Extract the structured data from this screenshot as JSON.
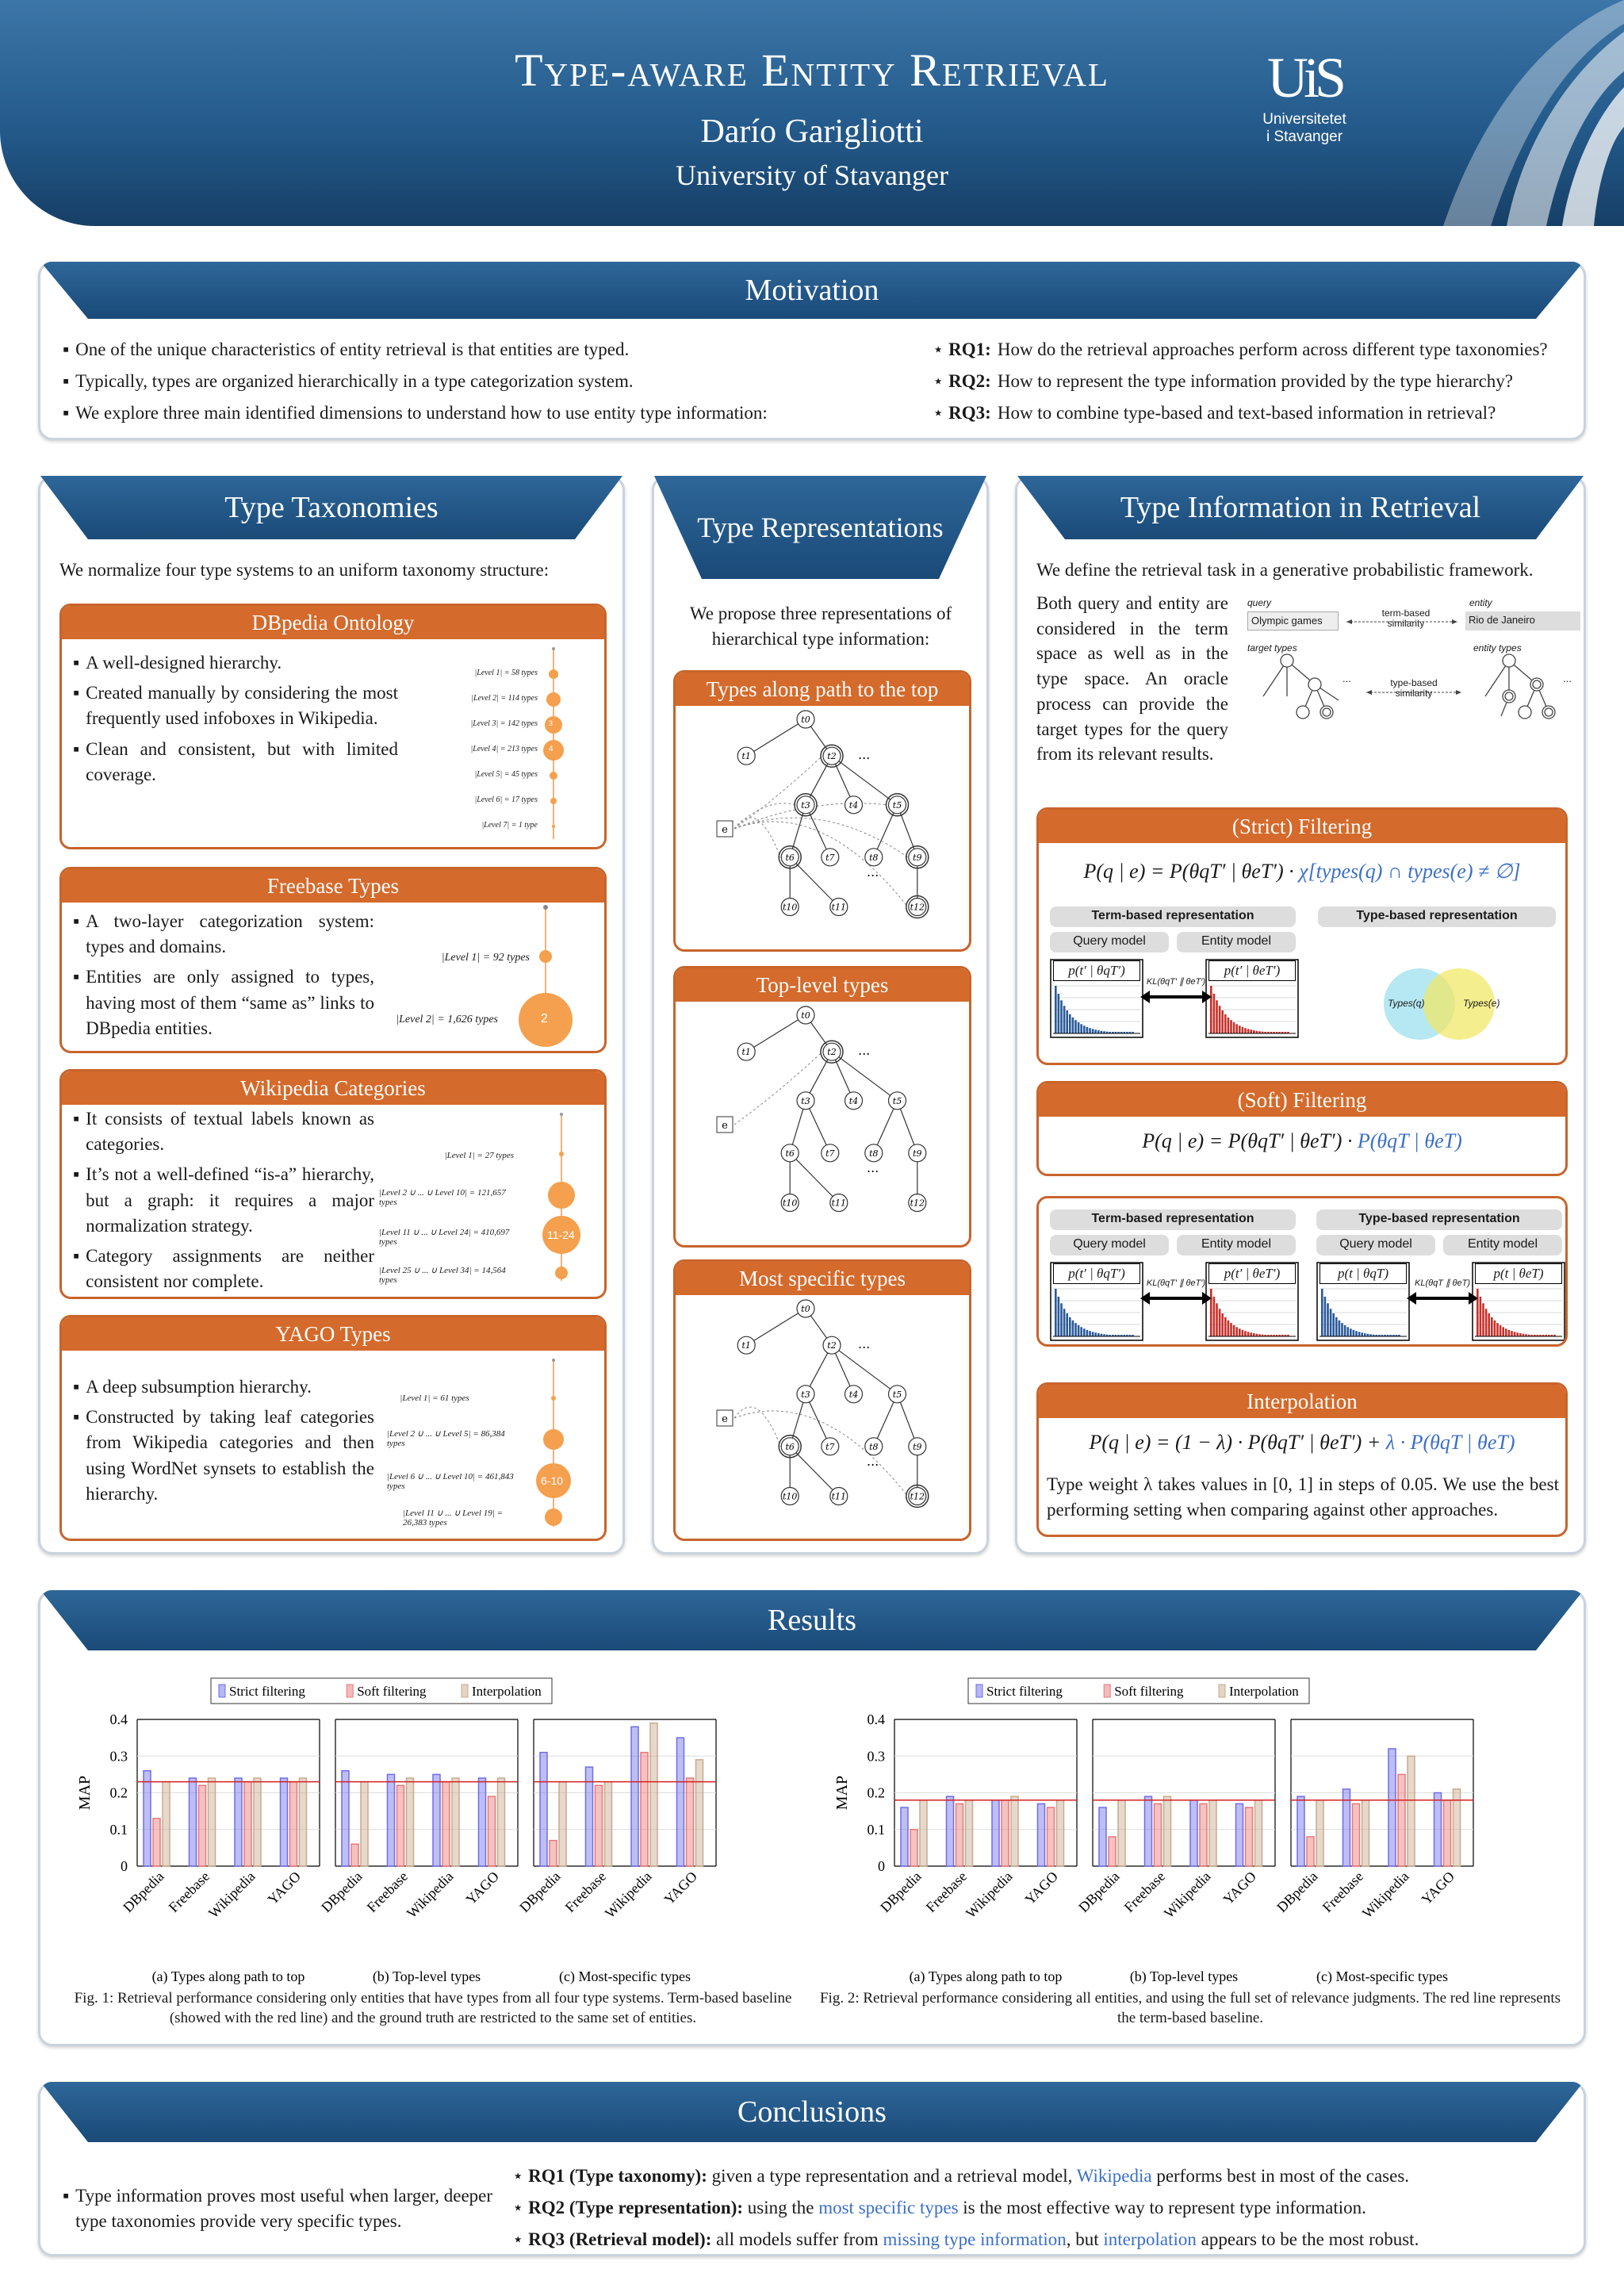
{
  "header": {
    "title": "Type-aware Entity Retrieval",
    "author": "Darío Garigliotti",
    "affiliation": "University of Stavanger",
    "logo_mark": "UiS",
    "logo_name_1": "Universitetet",
    "logo_name_2": "i Stavanger"
  },
  "motivation": {
    "title": "Motivation",
    "bullets": [
      "One of the unique characteristics of entity retrieval is that entities are typed.",
      "Typically, types are organized hierarchically in a type categorization system.",
      "We explore three main identified dimensions to understand how to use entity type information:"
    ],
    "rq": [
      {
        "label": "RQ1:",
        "text": "How do the retrieval approaches perform across different type taxonomies?"
      },
      {
        "label": "RQ2:",
        "text": "How to represent the type information provided by the type hierarchy?"
      },
      {
        "label": "RQ3:",
        "text": "How to combine type-based and text-based information in retrieval?"
      }
    ]
  },
  "taxonomies": {
    "title": "Type Taxonomies",
    "intro": "We normalize four type systems to an uniform taxonomy structure:",
    "dbpedia": {
      "title": "DBpedia Ontology",
      "bullets": [
        "A well-designed hierarchy.",
        "Created manually by considering the most frequently used infoboxes in Wikipedia.",
        "Clean and consistent, but with limited coverage."
      ],
      "levels": [
        "|Level 1| = 58 types",
        "|Level 2| = 114 types",
        "|Level 3| = 142 types",
        "|Level 4| = 213 types",
        "|Level 5| = 45 types",
        "|Level 6| = 17 types",
        "|Level 7| = 1 type"
      ],
      "circle_labels": [
        "3",
        "4"
      ]
    },
    "freebase": {
      "title": "Freebase Types",
      "bullets": [
        "A two-layer categorization system: types and domains.",
        "Entities are only assigned to types, having most of them “same as” links to DBpedia entities."
      ],
      "levels": [
        "|Level 1| = 92 types",
        "|Level 2| = 1,626 types"
      ],
      "circle_label": "2"
    },
    "wikipedia": {
      "title": "Wikipedia Categories",
      "bullets": [
        "It consists of textual labels known as categories.",
        "It’s not a well-defined “is-a” hierarchy, but a graph: it requires a major normalization strategy.",
        "Category assignments are neither consistent nor complete."
      ],
      "levels": [
        "|Level 1| = 27 types",
        "|Level 2 ∪ ... ∪ Level 10| = 121,657 types",
        "|Level 11 ∪ ... ∪ Level 24| = 410,697 types",
        "|Level 25 ∪ ... ∪ Level 34| = 14,564 types"
      ],
      "circle_label": "11-24"
    },
    "yago": {
      "title": "YAGO Types",
      "bullets": [
        "A deep subsumption hierarchy.",
        "Constructed by taking leaf categories from Wikipedia categories and then using WordNet synsets to establish the hierarchy."
      ],
      "levels": [
        "|Level 1| = 61 types",
        "|Level 2 ∪ ... ∪ Level 5| = 86,384 types",
        "|Level 6 ∪ ... ∪ Level 10| = 461,843 types",
        "|Level 11 ∪ ... ∪ Level 19| = 26,383 types"
      ],
      "circle_label": "6-10"
    }
  },
  "representations": {
    "title": "Type Representations",
    "intro": "We propose three representations of hierarchical type information:",
    "sub": [
      "Types along path to the top",
      "Top-level types",
      "Most specific types"
    ],
    "nodes": [
      "t0",
      "t1",
      "t2",
      "t3",
      "t4",
      "t5",
      "t6",
      "t7",
      "t8",
      "t9",
      "t10",
      "t11",
      "t12"
    ],
    "entity": "e",
    "dots": "..."
  },
  "retrieval": {
    "title": "Type Information in Retrieval",
    "intro": "We define the retrieval task in a generative probabilistic framework.",
    "para": "Both query and entity are considered in the term space as well as in the type space. An oracle process can provide the target types for the query from its relevant results.",
    "diagram": {
      "query": "query",
      "entity": "entity",
      "query_val": "Olympic games",
      "entity_val": "Rio de Janeiro",
      "term_sim": "term-based similarity",
      "target_types": "target types",
      "entity_types": "entity types",
      "type_sim": "type-based similarity",
      "dots": "..."
    },
    "strict": {
      "title": "(Strict) Filtering",
      "formula_a": "P(q | e) = P(θqT′ | θeT′) ·",
      "formula_b": "χ[types(q) ∩ types(e) ≠ ∅]",
      "term_rep": "Term-based representation",
      "type_rep": "Type-based representation",
      "query_model": "Query model",
      "entity_model": "Entity model",
      "pq": "p(t′ | θqT′)",
      "pe": "p(t′ | θeT′)",
      "kl": "KL(θqT′ ∥ θeT′)",
      "venn_q": "Types(q)",
      "venn_e": "Types(e)"
    },
    "soft": {
      "title": "(Soft) Filtering",
      "formula_a": "P(q | e) = P(θqT′ | θeT′) ·",
      "formula_b": "P(θqT | θeT)",
      "term_rep": "Term-based representation",
      "type_rep": "Type-based representation",
      "query_model": "Query model",
      "entity_model": "Entity model",
      "pq": "p(t′ | θqT′)",
      "pe": "p(t′ | θeT′)",
      "kl": "KL(θqT′ ∥ θeT′)",
      "pqt": "p(t | θqT)",
      "pet": "p(t | θeT)",
      "kl2": "KL(θqT ∥ θeT)"
    },
    "interp": {
      "title": "Interpolation",
      "formula_a": "P(q | e) = (1 − λ) · P(θqT′ | θeT′) +",
      "formula_b": "λ · P(θqT | θeT)",
      "text": "Type weight λ takes values in [0, 1] in steps of 0.05. We use the best performing setting when comparing against other approaches."
    }
  },
  "results": {
    "title": "Results",
    "fig1_caption": "Fig. 1: Retrieval performance considering only entities that have types from all four type systems. Term-based baseline (showed with the red line) and the ground truth are restricted to the same set of entities.",
    "fig2_caption": "Fig. 2: Retrieval performance considering all entities, and using the full set of relevance judgments. The red line represents the term-based baseline."
  },
  "chart_data": [
    {
      "type": "bar",
      "title": "Fig. 1",
      "ylabel": "MAP",
      "ylim": [
        0,
        0.4
      ],
      "yticks": [
        "0",
        "0.1",
        "0.2",
        "0.3",
        "0.4"
      ],
      "legend": [
        "Strict filtering",
        "Soft filtering",
        "Interpolation"
      ],
      "legend_colors": [
        "#6e6ee8",
        "#e87878",
        "#c8aa8c"
      ],
      "baseline": 0.23,
      "categories": [
        "DBpedia",
        "Freebase",
        "Wikipedia",
        "YAGO"
      ],
      "panels": [
        {
          "caption": "(a) Types along path to top",
          "series": [
            {
              "name": "Strict filtering",
              "values": [
                0.26,
                0.24,
                0.24,
                0.24
              ]
            },
            {
              "name": "Soft filtering",
              "values": [
                0.13,
                0.22,
                0.23,
                0.23
              ]
            },
            {
              "name": "Interpolation",
              "values": [
                0.23,
                0.24,
                0.24,
                0.24
              ]
            }
          ]
        },
        {
          "caption": "(b) Top-level types",
          "series": [
            {
              "name": "Strict filtering",
              "values": [
                0.26,
                0.25,
                0.25,
                0.24
              ]
            },
            {
              "name": "Soft filtering",
              "values": [
                0.06,
                0.22,
                0.23,
                0.19
              ]
            },
            {
              "name": "Interpolation",
              "values": [
                0.23,
                0.24,
                0.24,
                0.24
              ]
            }
          ]
        },
        {
          "caption": "(c) Most-specific types",
          "series": [
            {
              "name": "Strict filtering",
              "values": [
                0.31,
                0.27,
                0.38,
                0.35
              ]
            },
            {
              "name": "Soft filtering",
              "values": [
                0.07,
                0.22,
                0.31,
                0.24
              ]
            },
            {
              "name": "Interpolation",
              "values": [
                0.23,
                0.23,
                0.39,
                0.29
              ]
            }
          ]
        }
      ]
    },
    {
      "type": "bar",
      "title": "Fig. 2",
      "ylabel": "MAP",
      "ylim": [
        0,
        0.4
      ],
      "yticks": [
        "0",
        "0.1",
        "0.2",
        "0.3",
        "0.4"
      ],
      "legend": [
        "Strict filtering",
        "Soft filtering",
        "Interpolation"
      ],
      "legend_colors": [
        "#6e6ee8",
        "#e87878",
        "#c8aa8c"
      ],
      "baseline": 0.18,
      "categories": [
        "DBpedia",
        "Freebase",
        "Wikipedia",
        "YAGO"
      ],
      "panels": [
        {
          "caption": "(a) Types along path to top",
          "series": [
            {
              "name": "Strict filtering",
              "values": [
                0.16,
                0.19,
                0.18,
                0.17
              ]
            },
            {
              "name": "Soft filtering",
              "values": [
                0.1,
                0.17,
                0.18,
                0.16
              ]
            },
            {
              "name": "Interpolation",
              "values": [
                0.18,
                0.18,
                0.19,
                0.18
              ]
            }
          ]
        },
        {
          "caption": "(b) Top-level types",
          "series": [
            {
              "name": "Strict filtering",
              "values": [
                0.16,
                0.19,
                0.18,
                0.17
              ]
            },
            {
              "name": "Soft filtering",
              "values": [
                0.08,
                0.17,
                0.17,
                0.16
              ]
            },
            {
              "name": "Interpolation",
              "values": [
                0.18,
                0.19,
                0.18,
                0.18
              ]
            }
          ]
        },
        {
          "caption": "(c) Most-specific types",
          "series": [
            {
              "name": "Strict filtering",
              "values": [
                0.19,
                0.21,
                0.32,
                0.2
              ]
            },
            {
              "name": "Soft filtering",
              "values": [
                0.08,
                0.17,
                0.25,
                0.18
              ]
            },
            {
              "name": "Interpolation",
              "values": [
                0.18,
                0.18,
                0.3,
                0.21
              ]
            }
          ]
        }
      ]
    }
  ],
  "conclusions": {
    "title": "Conclusions",
    "left": "Type information proves most useful when larger, deeper type taxonomies provide very specific types.",
    "rq1": {
      "label": "RQ1 (Type taxonomy):",
      "pre": "given a type representation and a retrieval model,",
      "hl": "Wikipedia",
      "post": "performs best in most of the cases."
    },
    "rq2": {
      "label": "RQ2 (Type representation):",
      "pre": "using the",
      "hl": "most specific types",
      "post": "is the most effective way to represent type information."
    },
    "rq3": {
      "label": "RQ3 (Retrieval model):",
      "pre": "all models suffer from",
      "hl": "missing type information",
      "mid": ", but",
      "hl2": "interpolation",
      "post": "appears to be the most robust."
    }
  }
}
